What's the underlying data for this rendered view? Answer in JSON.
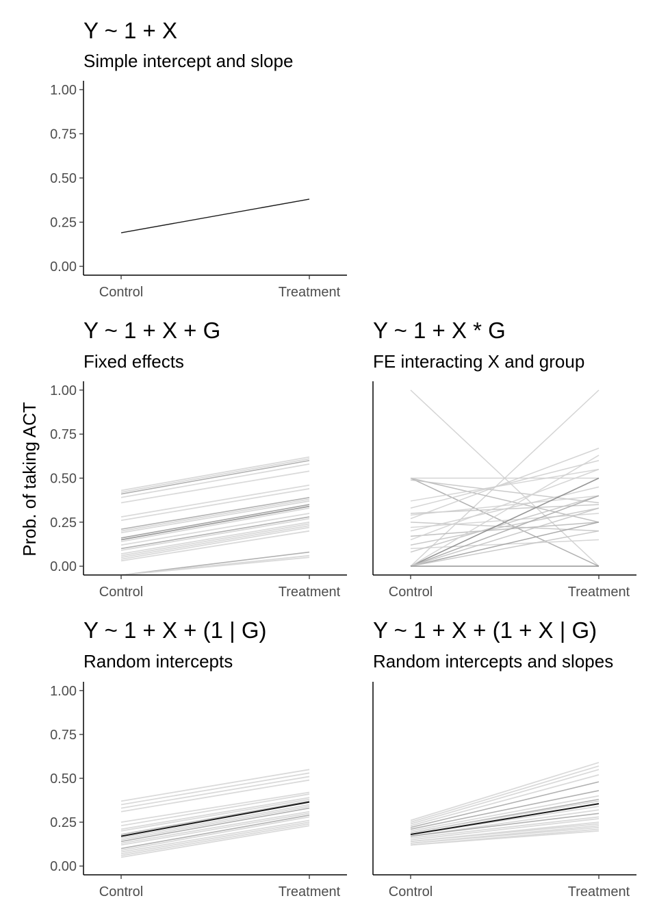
{
  "chart_data": {
    "type": "line",
    "ylabel": "Prob. of taking ACT",
    "categories": [
      "Control",
      "Treatment"
    ],
    "ylim": [
      -0.05,
      1.05
    ],
    "yticks": [
      "0.00",
      "0.25",
      "0.50",
      "0.75",
      "1.00"
    ],
    "grid": false,
    "panels": [
      {
        "id": "simple",
        "title": "Y ~ 1 + X",
        "subtitle": "Simple intercept and slope",
        "show_y_ticks": true,
        "line_color": "#000000",
        "series": [
          {
            "values": [
              0.19,
              0.38
            ],
            "tone": "#000000",
            "width": 1.4
          }
        ]
      },
      {
        "id": "fixed-effects",
        "title": "Y ~ 1 + X + G",
        "subtitle": "Fixed effects",
        "show_y_ticks": true,
        "series": [
          {
            "values": [
              0.43,
              0.62
            ],
            "tone": "#d6d6d6",
            "width": 1.8
          },
          {
            "values": [
              0.42,
              0.61
            ],
            "tone": "#d6d6d6",
            "width": 1.8
          },
          {
            "values": [
              0.41,
              0.6
            ],
            "tone": "#a8a8a8",
            "width": 1.6
          },
          {
            "values": [
              0.39,
              0.58
            ],
            "tone": "#d6d6d6",
            "width": 1.8
          },
          {
            "values": [
              0.36,
              0.54
            ],
            "tone": "#d6d6d6",
            "width": 1.8
          },
          {
            "values": [
              0.28,
              0.46
            ],
            "tone": "#d6d6d6",
            "width": 1.8
          },
          {
            "values": [
              0.26,
              0.44
            ],
            "tone": "#d6d6d6",
            "width": 1.8
          },
          {
            "values": [
              0.21,
              0.39
            ],
            "tone": "#a8a8a8",
            "width": 1.6
          },
          {
            "values": [
              0.2,
              0.38
            ],
            "tone": "#d6d6d6",
            "width": 1.8
          },
          {
            "values": [
              0.19,
              0.37
            ],
            "tone": "#d6d6d6",
            "width": 1.8
          },
          {
            "values": [
              0.16,
              0.35
            ],
            "tone": "#9a9a9a",
            "width": 1.6
          },
          {
            "values": [
              0.15,
              0.34
            ],
            "tone": "#8a8a8a",
            "width": 1.6
          },
          {
            "values": [
              0.14,
              0.33
            ],
            "tone": "#d6d6d6",
            "width": 1.8
          },
          {
            "values": [
              0.12,
              0.3
            ],
            "tone": "#d6d6d6",
            "width": 1.8
          },
          {
            "values": [
              0.1,
              0.28
            ],
            "tone": "#a8a8a8",
            "width": 1.6
          },
          {
            "values": [
              0.09,
              0.27
            ],
            "tone": "#d6d6d6",
            "width": 1.8
          },
          {
            "values": [
              0.07,
              0.25
            ],
            "tone": "#d6d6d6",
            "width": 1.8
          },
          {
            "values": [
              0.06,
              0.24
            ],
            "tone": "#d6d6d6",
            "width": 1.8
          },
          {
            "values": [
              0.05,
              0.23
            ],
            "tone": "#d6d6d6",
            "width": 1.8
          },
          {
            "values": [
              0.04,
              0.22
            ],
            "tone": "#d6d6d6",
            "width": 1.8
          },
          {
            "values": [
              0.03,
              0.2
            ],
            "tone": "#d6d6d6",
            "width": 1.8
          },
          {
            "values": [
              -0.05,
              0.08
            ],
            "tone": "#a8a8a8",
            "width": 1.6
          },
          {
            "values": [
              -0.05,
              0.06
            ],
            "tone": "#d6d6d6",
            "width": 1.8
          },
          {
            "values": [
              -0.05,
              0.05
            ],
            "tone": "#d6d6d6",
            "width": 1.8
          }
        ]
      },
      {
        "id": "fe-interacting",
        "title": "Y ~ 1 + X * G",
        "subtitle": "FE interacting X and group",
        "show_y_ticks": false,
        "series": [
          {
            "values": [
              1.0,
              0.0
            ],
            "tone": "#cfcfcf",
            "width": 1.5
          },
          {
            "values": [
              0.0,
              1.0
            ],
            "tone": "#cfcfcf",
            "width": 1.5
          },
          {
            "values": [
              0.5,
              0.0
            ],
            "tone": "#a8a8a8",
            "width": 1.5
          },
          {
            "values": [
              0.5,
              0.25
            ],
            "tone": "#b8b8b8",
            "width": 1.5
          },
          {
            "values": [
              0.5,
              0.5
            ],
            "tone": "#cfcfcf",
            "width": 1.5
          },
          {
            "values": [
              0.49,
              0.36
            ],
            "tone": "#c4c4c4",
            "width": 1.5
          },
          {
            "values": [
              0.37,
              0.55
            ],
            "tone": "#d2d2d2",
            "width": 1.5
          },
          {
            "values": [
              0.33,
              0.6
            ],
            "tone": "#cfcfcf",
            "width": 1.5
          },
          {
            "values": [
              0.3,
              0.35
            ],
            "tone": "#c4c4c4",
            "width": 1.5
          },
          {
            "values": [
              0.29,
              0.4
            ],
            "tone": "#d2d2d2",
            "width": 1.5
          },
          {
            "values": [
              0.27,
              0.67
            ],
            "tone": "#cfcfcf",
            "width": 1.5
          },
          {
            "values": [
              0.25,
              0.2
            ],
            "tone": "#c4c4c4",
            "width": 1.5
          },
          {
            "values": [
              0.22,
              0.3
            ],
            "tone": "#d2d2d2",
            "width": 1.5
          },
          {
            "values": [
              0.2,
              0.45
            ],
            "tone": "#cfcfcf",
            "width": 1.5
          },
          {
            "values": [
              0.17,
              0.25
            ],
            "tone": "#b8b8b8",
            "width": 1.5
          },
          {
            "values": [
              0.15,
              0.55
            ],
            "tone": "#d2d2d2",
            "width": 1.5
          },
          {
            "values": [
              0.12,
              0.33
            ],
            "tone": "#c4c4c4",
            "width": 1.5
          },
          {
            "values": [
              0.1,
              0.15
            ],
            "tone": "#d2d2d2",
            "width": 1.5
          },
          {
            "values": [
              0.08,
              0.4
            ],
            "tone": "#c4c4c4",
            "width": 1.5
          },
          {
            "values": [
              0.0,
              0.5
            ],
            "tone": "#8a8a8a",
            "width": 1.6
          },
          {
            "values": [
              0.0,
              0.4
            ],
            "tone": "#a8a8a8",
            "width": 1.5
          },
          {
            "values": [
              0.0,
              0.25
            ],
            "tone": "#a0a0a0",
            "width": 1.5
          },
          {
            "values": [
              0.0,
              0.33
            ],
            "tone": "#c4c4c4",
            "width": 1.5
          },
          {
            "values": [
              0.0,
              0.63
            ],
            "tone": "#d2d2d2",
            "width": 1.5
          },
          {
            "values": [
              0.0,
              0.2
            ],
            "tone": "#c4c4c4",
            "width": 1.5
          },
          {
            "values": [
              0.0,
              0.0
            ],
            "tone": "#8a8a8a",
            "width": 1.6
          }
        ]
      },
      {
        "id": "random-intercepts",
        "title": "Y ~ 1 + X + (1 | G)",
        "subtitle": "Random intercepts",
        "show_y_ticks": true,
        "mean": {
          "values": [
            0.17,
            0.365
          ],
          "tone": "#000000",
          "width": 2.0
        },
        "series": [
          {
            "values": [
              0.37,
              0.55
            ],
            "tone": "#d6d6d6",
            "width": 1.8
          },
          {
            "values": [
              0.35,
              0.53
            ],
            "tone": "#d6d6d6",
            "width": 1.8
          },
          {
            "values": [
              0.33,
              0.51
            ],
            "tone": "#d6d6d6",
            "width": 1.8
          },
          {
            "values": [
              0.31,
              0.49
            ],
            "tone": "#d6d6d6",
            "width": 1.8
          },
          {
            "values": [
              0.25,
              0.42
            ],
            "tone": "#d6d6d6",
            "width": 1.8
          },
          {
            "values": [
              0.23,
              0.41
            ],
            "tone": "#d6d6d6",
            "width": 1.8
          },
          {
            "values": [
              0.21,
              0.39
            ],
            "tone": "#d6d6d6",
            "width": 1.8
          },
          {
            "values": [
              0.2,
              0.38
            ],
            "tone": "#d6d6d6",
            "width": 1.8
          },
          {
            "values": [
              0.18,
              0.37
            ],
            "tone": "#b8b8b8",
            "width": 1.6
          },
          {
            "values": [
              0.16,
              0.35
            ],
            "tone": "#d6d6d6",
            "width": 1.8
          },
          {
            "values": [
              0.15,
              0.34
            ],
            "tone": "#d6d6d6",
            "width": 1.8
          },
          {
            "values": [
              0.14,
              0.33
            ],
            "tone": "#a8a8a8",
            "width": 1.6
          },
          {
            "values": [
              0.13,
              0.31
            ],
            "tone": "#d6d6d6",
            "width": 1.8
          },
          {
            "values": [
              0.12,
              0.3
            ],
            "tone": "#d6d6d6",
            "width": 1.8
          },
          {
            "values": [
              0.1,
              0.29
            ],
            "tone": "#a8a8a8",
            "width": 1.6
          },
          {
            "values": [
              0.09,
              0.28
            ],
            "tone": "#d6d6d6",
            "width": 1.8
          },
          {
            "values": [
              0.08,
              0.26
            ],
            "tone": "#d6d6d6",
            "width": 1.8
          },
          {
            "values": [
              0.07,
              0.25
            ],
            "tone": "#d6d6d6",
            "width": 1.8
          },
          {
            "values": [
              0.06,
              0.24
            ],
            "tone": "#d6d6d6",
            "width": 1.8
          },
          {
            "values": [
              0.05,
              0.23
            ],
            "tone": "#d6d6d6",
            "width": 1.8
          }
        ]
      },
      {
        "id": "random-slopes",
        "title": "Y ~ 1 + X + (1 + X | G)",
        "subtitle": "Random intercepts and slopes",
        "show_y_ticks": false,
        "mean": {
          "values": [
            0.18,
            0.355
          ],
          "tone": "#000000",
          "width": 2.0
        },
        "series": [
          {
            "values": [
              0.26,
              0.59
            ],
            "tone": "#d6d6d6",
            "width": 1.8
          },
          {
            "values": [
              0.25,
              0.57
            ],
            "tone": "#d6d6d6",
            "width": 1.8
          },
          {
            "values": [
              0.24,
              0.55
            ],
            "tone": "#d6d6d6",
            "width": 1.8
          },
          {
            "values": [
              0.23,
              0.52
            ],
            "tone": "#d6d6d6",
            "width": 1.8
          },
          {
            "values": [
              0.22,
              0.48
            ],
            "tone": "#a8a8a8",
            "width": 1.6
          },
          {
            "values": [
              0.21,
              0.43
            ],
            "tone": "#a8a8a8",
            "width": 1.6
          },
          {
            "values": [
              0.2,
              0.4
            ],
            "tone": "#d6d6d6",
            "width": 1.8
          },
          {
            "values": [
              0.19,
              0.38
            ],
            "tone": "#a8a8a8",
            "width": 1.6
          },
          {
            "values": [
              0.19,
              0.37
            ],
            "tone": "#d6d6d6",
            "width": 1.8
          },
          {
            "values": [
              0.18,
              0.34
            ],
            "tone": "#d6d6d6",
            "width": 1.8
          },
          {
            "values": [
              0.17,
              0.32
            ],
            "tone": "#d6d6d6",
            "width": 1.8
          },
          {
            "values": [
              0.17,
              0.3
            ],
            "tone": "#a8a8a8",
            "width": 1.6
          },
          {
            "values": [
              0.16,
              0.28
            ],
            "tone": "#d6d6d6",
            "width": 1.8
          },
          {
            "values": [
              0.15,
              0.27
            ],
            "tone": "#d6d6d6",
            "width": 1.8
          },
          {
            "values": [
              0.14,
              0.25
            ],
            "tone": "#d6d6d6",
            "width": 1.8
          },
          {
            "values": [
              0.14,
              0.24
            ],
            "tone": "#d6d6d6",
            "width": 1.8
          },
          {
            "values": [
              0.13,
              0.23
            ],
            "tone": "#d6d6d6",
            "width": 1.8
          },
          {
            "values": [
              0.13,
              0.22
            ],
            "tone": "#d6d6d6",
            "width": 1.8
          },
          {
            "values": [
              0.12,
              0.21
            ],
            "tone": "#d6d6d6",
            "width": 1.8
          },
          {
            "values": [
              0.12,
              0.2
            ],
            "tone": "#d6d6d6",
            "width": 1.8
          }
        ]
      }
    ]
  }
}
